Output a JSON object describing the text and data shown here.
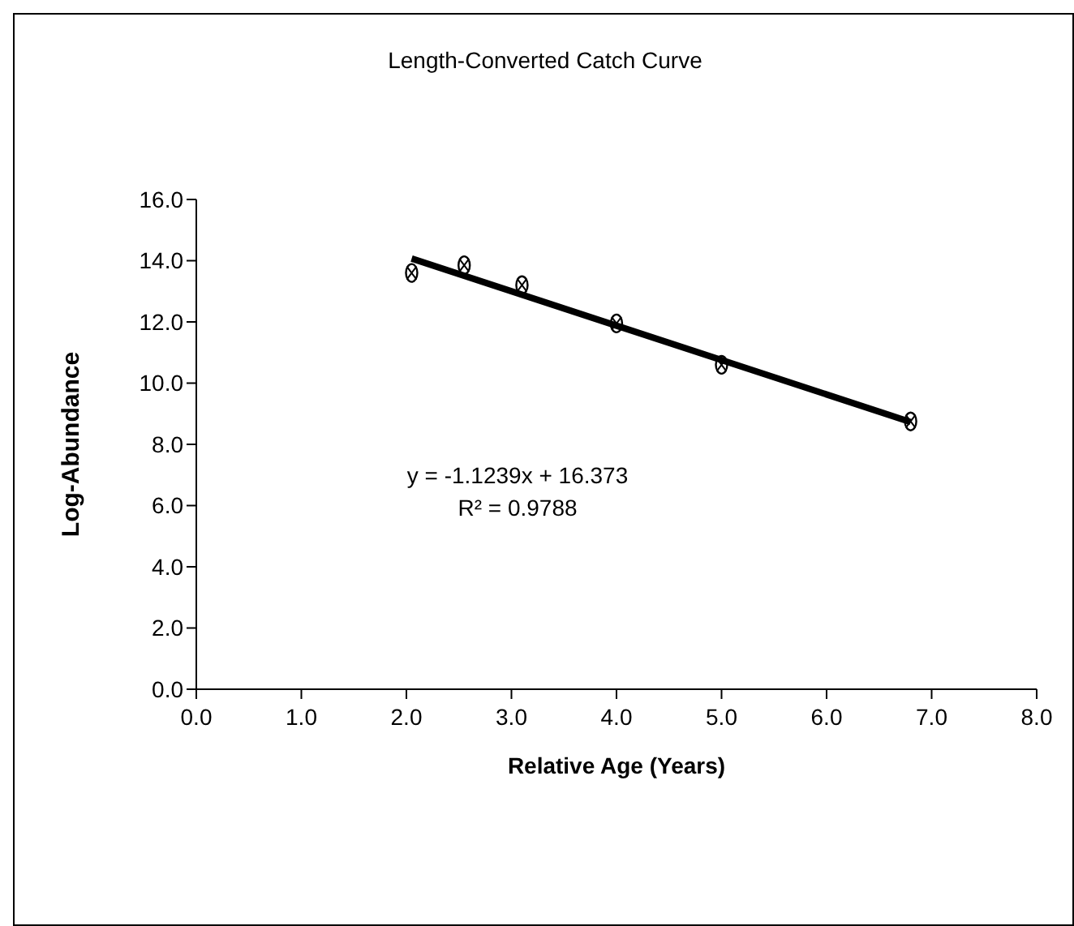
{
  "chart_data": {
    "type": "scatter",
    "title": "Length-Converted Catch Curve",
    "xlabel": "Relative Age (Years)",
    "ylabel": "Log-Abundance",
    "annotations": [
      "y = -1.1239x + 16.373",
      "R² = 0.9788"
    ],
    "series": [
      {
        "color": "#000000",
        "marker": "circle",
        "x": [
          2.05,
          2.55,
          3.1,
          4.0,
          5.0,
          6.8
        ],
        "values": [
          13.6,
          13.85,
          13.2,
          11.95,
          10.6,
          8.75
        ]
      },
      {
        "type": "line",
        "color": "#000000",
        "line_style": "solid",
        "x": [
          2.05,
          6.8
        ],
        "values": [
          14.07,
          8.73
        ]
      }
    ],
    "xlim": [
      0,
      8
    ],
    "xticks": [
      {
        "value": 0,
        "label": "0.0"
      },
      {
        "value": 1,
        "label": "1.0"
      },
      {
        "value": 2,
        "label": "2.0"
      },
      {
        "value": 3,
        "label": "3.0"
      },
      {
        "value": 4,
        "label": "4.0"
      },
      {
        "value": 5,
        "label": "5.0"
      },
      {
        "value": 6,
        "label": "6.0"
      },
      {
        "value": 7,
        "label": "7.0"
      },
      {
        "value": 8,
        "label": "8.0"
      }
    ],
    "ylim": [
      0,
      16
    ],
    "yticks": [
      {
        "value": 0,
        "label": "0.0"
      },
      {
        "value": 2,
        "label": "2.0"
      },
      {
        "value": 4,
        "label": "4.0"
      },
      {
        "value": 6,
        "label": "6.0"
      },
      {
        "value": 8,
        "label": "8.0"
      },
      {
        "value": 10,
        "label": "10.0"
      },
      {
        "value": 12,
        "label": "12.0"
      },
      {
        "value": 14,
        "label": "14.0"
      },
      {
        "value": 16,
        "label": "16.0"
      }
    ],
    "grid": false,
    "legend": false
  }
}
